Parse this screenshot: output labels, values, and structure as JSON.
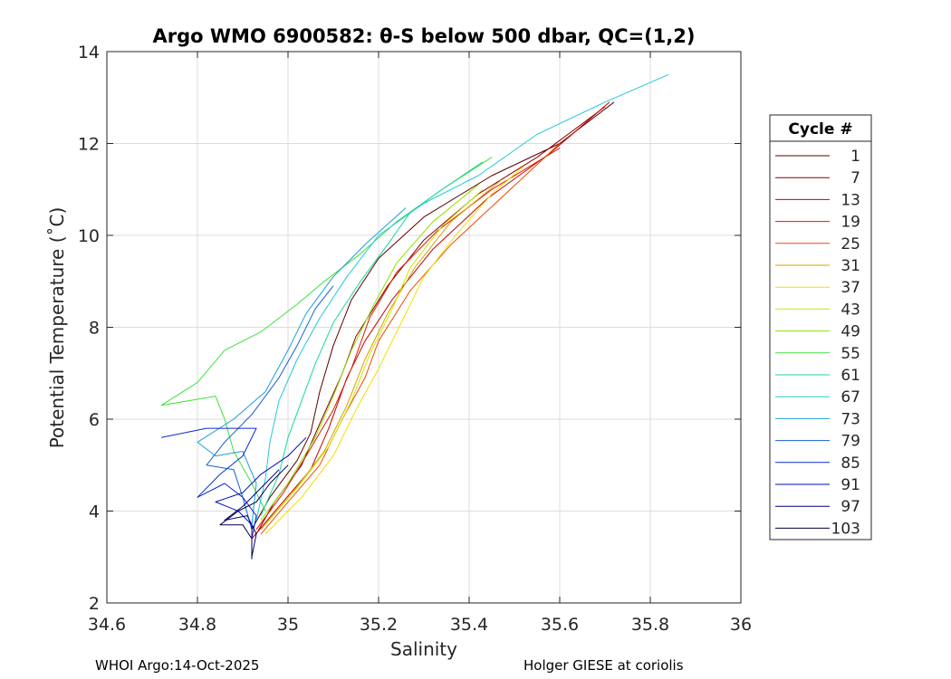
{
  "chart_data": {
    "type": "line",
    "title": "Argo WMO 6900582: θ-S below 500 dbar,  QC=(1,2)",
    "xlabel": "Salinity",
    "ylabel": "Potential Temperature (˚C)",
    "xlim": [
      34.6,
      36
    ],
    "ylim": [
      2,
      14
    ],
    "xticks": [
      "34.6",
      "34.8",
      "35",
      "35.2",
      "35.4",
      "35.6",
      "35.8",
      "36"
    ],
    "yticks": [
      "2",
      "4",
      "6",
      "8",
      "10",
      "12",
      "14"
    ],
    "grid": true,
    "legend": {
      "title": "Cycle #",
      "placement": "right-outside",
      "entries": [
        "1",
        "7",
        "13",
        "19",
        "25",
        "31",
        "37",
        "43",
        "49",
        "55",
        "61",
        "67",
        "73",
        "79",
        "85",
        "91",
        "97",
        "103"
      ],
      "colors": [
        "#5a0000",
        "#8b0000",
        "#c40000",
        "#dd1a00",
        "#ee4a00",
        "#d4a000",
        "#f2de00",
        "#cfe600",
        "#8fe000",
        "#3fe03f",
        "#1ad89a",
        "#20c8dc",
        "#1a9fd6",
        "#1560d0",
        "#0a2ed0",
        "#0010b0",
        "#000080",
        "#00004a"
      ]
    },
    "series": [
      {
        "colorIndex": 0,
        "points": [
          [
            34.92,
            3.6
          ],
          [
            34.96,
            4.3
          ],
          [
            35.02,
            5.1
          ],
          [
            35.05,
            5.7
          ],
          [
            35.07,
            6.6
          ],
          [
            35.1,
            7.6
          ],
          [
            35.14,
            8.6
          ],
          [
            35.2,
            9.5
          ],
          [
            35.3,
            10.4
          ],
          [
            35.45,
            11.3
          ],
          [
            35.6,
            12.0
          ],
          [
            35.72,
            12.9
          ]
        ]
      },
      {
        "colorIndex": 1,
        "points": [
          [
            34.93,
            3.5
          ],
          [
            34.97,
            4.2
          ],
          [
            35.03,
            5.0
          ],
          [
            35.07,
            5.9
          ],
          [
            35.12,
            7.0
          ],
          [
            35.15,
            7.8
          ],
          [
            35.22,
            8.9
          ],
          [
            35.3,
            9.9
          ],
          [
            35.42,
            10.9
          ],
          [
            35.55,
            11.7
          ],
          [
            35.7,
            12.8
          ]
        ]
      },
      {
        "colorIndex": 2,
        "points": [
          [
            34.92,
            3.4
          ],
          [
            34.98,
            4.1
          ],
          [
            35.05,
            4.9
          ],
          [
            35.09,
            5.8
          ],
          [
            35.13,
            6.9
          ],
          [
            35.17,
            7.7
          ],
          [
            35.23,
            8.6
          ],
          [
            35.32,
            9.7
          ],
          [
            35.44,
            10.8
          ],
          [
            35.58,
            11.8
          ],
          [
            35.71,
            12.9
          ]
        ]
      },
      {
        "colorIndex": 3,
        "points": [
          [
            34.93,
            3.6
          ],
          [
            34.99,
            4.4
          ],
          [
            35.04,
            5.2
          ],
          [
            35.1,
            6.2
          ],
          [
            35.14,
            7.1
          ],
          [
            35.18,
            8.2
          ],
          [
            35.24,
            9.2
          ],
          [
            35.33,
            10.1
          ],
          [
            35.45,
            11.0
          ],
          [
            35.6,
            11.9
          ]
        ]
      },
      {
        "colorIndex": 4,
        "points": [
          [
            34.94,
            3.5
          ],
          [
            35.0,
            4.2
          ],
          [
            35.07,
            5.0
          ],
          [
            35.12,
            6.0
          ],
          [
            35.17,
            6.9
          ],
          [
            35.2,
            7.7
          ],
          [
            35.27,
            8.8
          ],
          [
            35.36,
            9.8
          ],
          [
            35.48,
            10.9
          ],
          [
            35.6,
            12.0
          ]
        ]
      },
      {
        "colorIndex": 5,
        "points": [
          [
            34.94,
            3.6
          ],
          [
            35.01,
            4.4
          ],
          [
            35.08,
            5.3
          ],
          [
            35.13,
            6.3
          ],
          [
            35.17,
            7.3
          ],
          [
            35.22,
            8.3
          ],
          [
            35.28,
            9.3
          ],
          [
            35.36,
            10.3
          ],
          [
            35.47,
            11.2
          ]
        ]
      },
      {
        "colorIndex": 6,
        "points": [
          [
            34.95,
            3.5
          ],
          [
            35.03,
            4.3
          ],
          [
            35.1,
            5.2
          ],
          [
            35.15,
            6.2
          ],
          [
            35.2,
            7.1
          ],
          [
            35.25,
            8.1
          ],
          [
            35.3,
            9.1
          ],
          [
            35.37,
            10.0
          ],
          [
            35.45,
            10.9
          ],
          [
            35.52,
            11.5
          ]
        ]
      },
      {
        "colorIndex": 7,
        "points": [
          [
            34.95,
            3.7
          ],
          [
            35.02,
            4.5
          ],
          [
            35.09,
            5.4
          ],
          [
            35.14,
            6.4
          ],
          [
            35.18,
            7.4
          ],
          [
            35.23,
            8.4
          ],
          [
            35.27,
            9.3
          ],
          [
            35.34,
            10.2
          ],
          [
            35.43,
            11.0
          ]
        ]
      },
      {
        "colorIndex": 8,
        "points": [
          [
            34.94,
            3.8
          ],
          [
            35.0,
            4.6
          ],
          [
            35.06,
            5.6
          ],
          [
            35.1,
            6.5
          ],
          [
            35.14,
            7.5
          ],
          [
            35.19,
            8.5
          ],
          [
            35.24,
            9.4
          ],
          [
            35.32,
            10.3
          ],
          [
            35.42,
            11.1
          ]
        ]
      },
      {
        "colorIndex": 9,
        "points": [
          [
            34.95,
            4.0
          ],
          [
            34.92,
            4.6
          ],
          [
            34.88,
            5.3
          ],
          [
            34.86,
            6.0
          ],
          [
            34.84,
            6.5
          ],
          [
            34.72,
            6.3
          ],
          [
            34.8,
            6.8
          ],
          [
            34.86,
            7.5
          ],
          [
            34.94,
            7.9
          ],
          [
            35.02,
            8.5
          ],
          [
            35.08,
            9.0
          ],
          [
            35.16,
            9.6
          ],
          [
            35.24,
            10.3
          ],
          [
            35.34,
            11.0
          ],
          [
            35.45,
            11.7
          ]
        ]
      },
      {
        "colorIndex": 10,
        "points": [
          [
            34.94,
            3.9
          ],
          [
            34.98,
            4.8
          ],
          [
            35.0,
            5.6
          ],
          [
            35.03,
            6.4
          ],
          [
            35.06,
            7.2
          ],
          [
            35.1,
            8.1
          ],
          [
            35.16,
            9.0
          ],
          [
            35.22,
            9.8
          ],
          [
            35.27,
            10.5
          ],
          [
            35.34,
            11.0
          ],
          [
            35.43,
            11.6
          ]
        ]
      },
      {
        "colorIndex": 11,
        "points": [
          [
            34.93,
            3.8
          ],
          [
            34.95,
            4.7
          ],
          [
            34.96,
            5.5
          ],
          [
            34.98,
            6.4
          ],
          [
            35.02,
            7.3
          ],
          [
            35.07,
            8.2
          ],
          [
            35.13,
            9.1
          ],
          [
            35.2,
            10.0
          ],
          [
            35.3,
            10.7
          ],
          [
            35.42,
            11.3
          ],
          [
            35.55,
            12.2
          ],
          [
            35.7,
            12.9
          ],
          [
            35.84,
            13.5
          ]
        ]
      },
      {
        "colorIndex": 12,
        "points": [
          [
            34.92,
            3.7
          ],
          [
            34.93,
            4.6
          ],
          [
            34.9,
            5.3
          ],
          [
            34.84,
            5.2
          ],
          [
            34.8,
            5.5
          ],
          [
            34.88,
            6.0
          ],
          [
            34.95,
            6.6
          ],
          [
            35.0,
            7.5
          ],
          [
            35.04,
            8.3
          ],
          [
            35.1,
            9.1
          ],
          [
            35.17,
            9.8
          ],
          [
            35.26,
            10.6
          ]
        ]
      },
      {
        "colorIndex": 13,
        "points": [
          [
            34.92,
            3.6
          ],
          [
            34.9,
            4.3
          ],
          [
            34.88,
            4.9
          ],
          [
            34.82,
            5.0
          ],
          [
            34.86,
            5.5
          ],
          [
            34.92,
            6.1
          ],
          [
            34.98,
            6.9
          ],
          [
            35.02,
            7.6
          ],
          [
            35.06,
            8.4
          ],
          [
            35.1,
            8.9
          ]
        ]
      },
      {
        "colorIndex": 14,
        "points": [
          [
            34.92,
            3.4
          ],
          [
            34.93,
            3.9
          ],
          [
            34.9,
            4.3
          ],
          [
            34.86,
            4.6
          ],
          [
            34.8,
            4.3
          ],
          [
            34.85,
            4.8
          ],
          [
            34.9,
            5.2
          ],
          [
            34.93,
            5.8
          ],
          [
            34.82,
            5.8
          ],
          [
            34.72,
            5.6
          ]
        ]
      },
      {
        "colorIndex": 15,
        "points": [
          [
            34.92,
            3.2
          ],
          [
            34.92,
            3.7
          ],
          [
            34.89,
            4.0
          ],
          [
            34.84,
            4.2
          ],
          [
            34.9,
            4.4
          ],
          [
            34.94,
            4.8
          ],
          [
            35.0,
            5.2
          ],
          [
            35.04,
            5.6
          ]
        ]
      },
      {
        "colorIndex": 16,
        "points": [
          [
            34.92,
            3.0
          ],
          [
            34.93,
            3.5
          ],
          [
            34.91,
            3.9
          ],
          [
            34.86,
            3.8
          ],
          [
            34.9,
            4.1
          ],
          [
            34.94,
            4.5
          ],
          [
            34.98,
            4.9
          ]
        ]
      },
      {
        "colorIndex": 17,
        "points": [
          [
            34.92,
            2.95
          ],
          [
            34.92,
            3.4
          ],
          [
            34.9,
            3.7
          ],
          [
            34.85,
            3.7
          ],
          [
            34.89,
            4.0
          ],
          [
            34.93,
            4.2
          ],
          [
            34.96,
            4.6
          ],
          [
            35.0,
            5.0
          ]
        ]
      }
    ]
  },
  "footer": {
    "left": "WHOI Argo:14-Oct-2025",
    "right": "Holger GIESE at coriolis"
  }
}
